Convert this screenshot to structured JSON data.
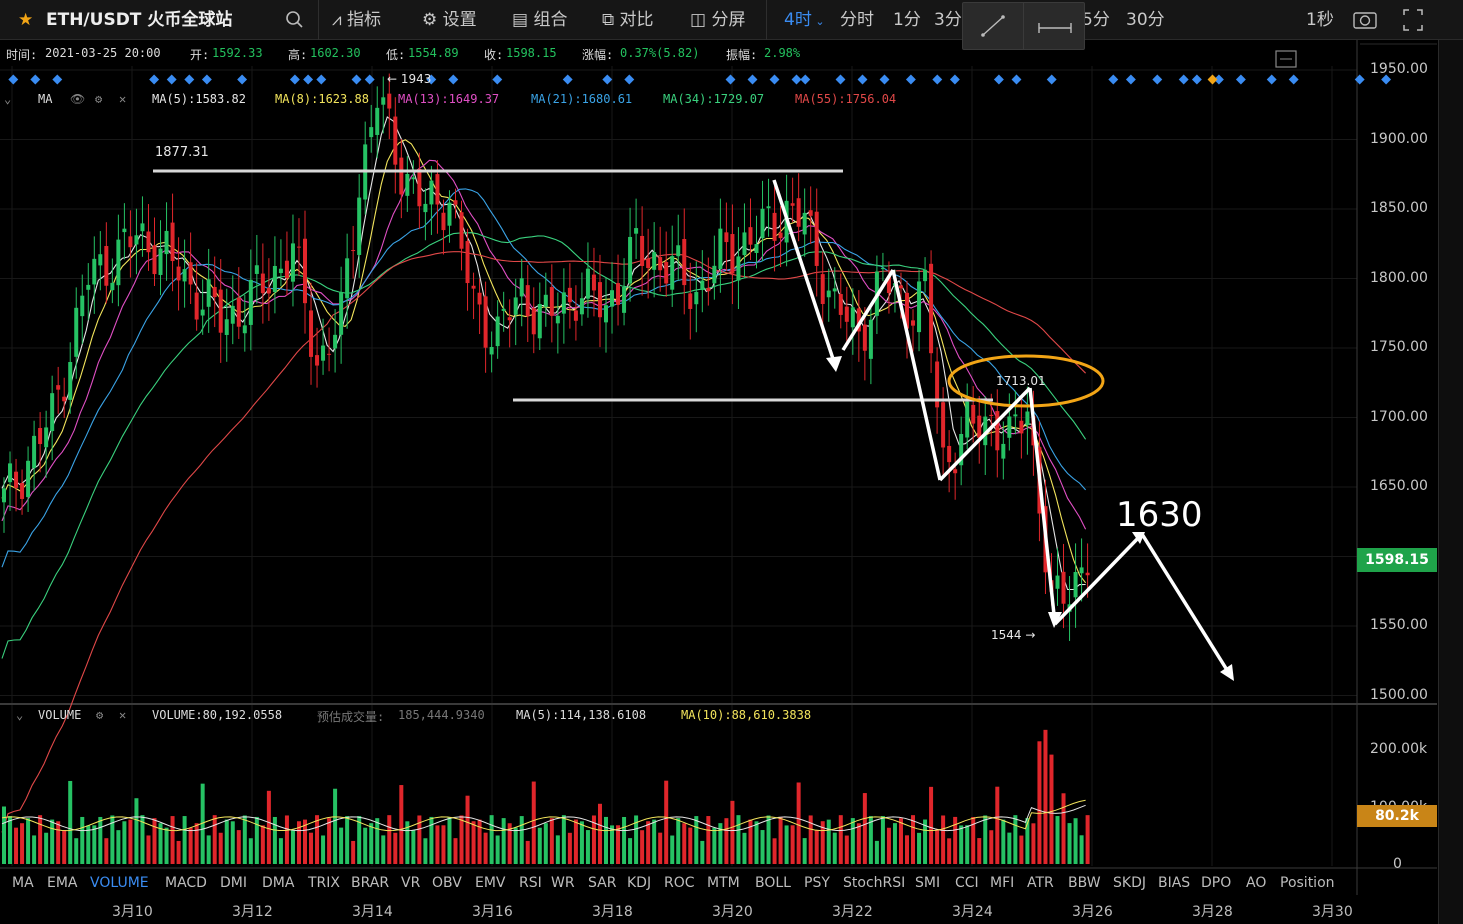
{
  "toolbar": {
    "title": "ETH/USDT 火币全球站",
    "indicators": "指标",
    "settings": "设置",
    "combo": "组合",
    "compare": "对比",
    "split": "分屏",
    "interval_active": "4时",
    "intervals": [
      "分时",
      "1分",
      "3分",
      "5分",
      "30分"
    ],
    "refresh": "1秒"
  },
  "ohlc": {
    "time_label": "时间:",
    "time": "2021-03-25 20:00",
    "open_label": "开:",
    "open": "1592.33",
    "high_label": "高:",
    "high": "1602.30",
    "low_label": "低:",
    "low": "1554.89",
    "close_label": "收:",
    "close": "1598.15",
    "change_label": "涨幅:",
    "change": "0.37%(5.82)",
    "amplitude_label": "振幅:",
    "amplitude": "2.98%"
  },
  "ma_legend": {
    "name": "MA",
    "items": [
      {
        "label": "MA(5):1583.82",
        "color": "#e6e6e6"
      },
      {
        "label": "MA(8):1623.88",
        "color": "#f2e45c"
      },
      {
        "label": "MA(13):1649.37",
        "color": "#e04fc4"
      },
      {
        "label": "MA(21):1680.61",
        "color": "#3aa3e6"
      },
      {
        "label": "MA(34):1729.07",
        "color": "#3ad17e"
      },
      {
        "label": "MA(55):1756.04",
        "color": "#e04848"
      }
    ]
  },
  "volume_legend": {
    "name": "VOLUME",
    "volume": "VOLUME:80,192.0558",
    "estimate_label": "预估成交量:",
    "estimate_value": "185,444.9340",
    "ma5": "MA(5):114,138.6108",
    "ma10": "MA(10):88,610.3838"
  },
  "annotations": {
    "high_marker": "← 1943",
    "level_top": "1877.31",
    "level_circle": "1713.01",
    "low_marker": "1544 →",
    "target": "1630"
  },
  "price_axis": [
    "1950.00",
    "1900.00",
    "1850.00",
    "1800.00",
    "1750.00",
    "1700.00",
    "1650.00",
    "1600.00",
    "1550.00",
    "1500.00"
  ],
  "last_price": "1598.15",
  "volume_axis": [
    "200.00k",
    "100.00k",
    "0"
  ],
  "last_volume": "80.2k",
  "indicator_tabs": [
    "MA",
    "EMA",
    "VOLUME",
    "MACD",
    "DMI",
    "DMA",
    "TRIX",
    "BRAR",
    "VR",
    "OBV",
    "EMV",
    "RSI",
    "WR",
    "SAR",
    "KDJ",
    "ROC",
    "MTM",
    "BOLL",
    "PSY",
    "StochRSI",
    "SMI",
    "CCI",
    "MFI",
    "ATR",
    "BBW",
    "SKDJ",
    "BIAS",
    "DPO",
    "AO",
    "Position"
  ],
  "active_indicator": "VOLUME",
  "date_axis": [
    "3月10",
    "3月12",
    "3月14",
    "3月16",
    "3月18",
    "3月20",
    "3月22",
    "3月24",
    "3月26",
    "3月28",
    "3月30"
  ],
  "colors": {
    "up": "#26c264",
    "down": "#e0262b",
    "accent": "#3a8cf2",
    "circle": "#f2a516"
  }
}
